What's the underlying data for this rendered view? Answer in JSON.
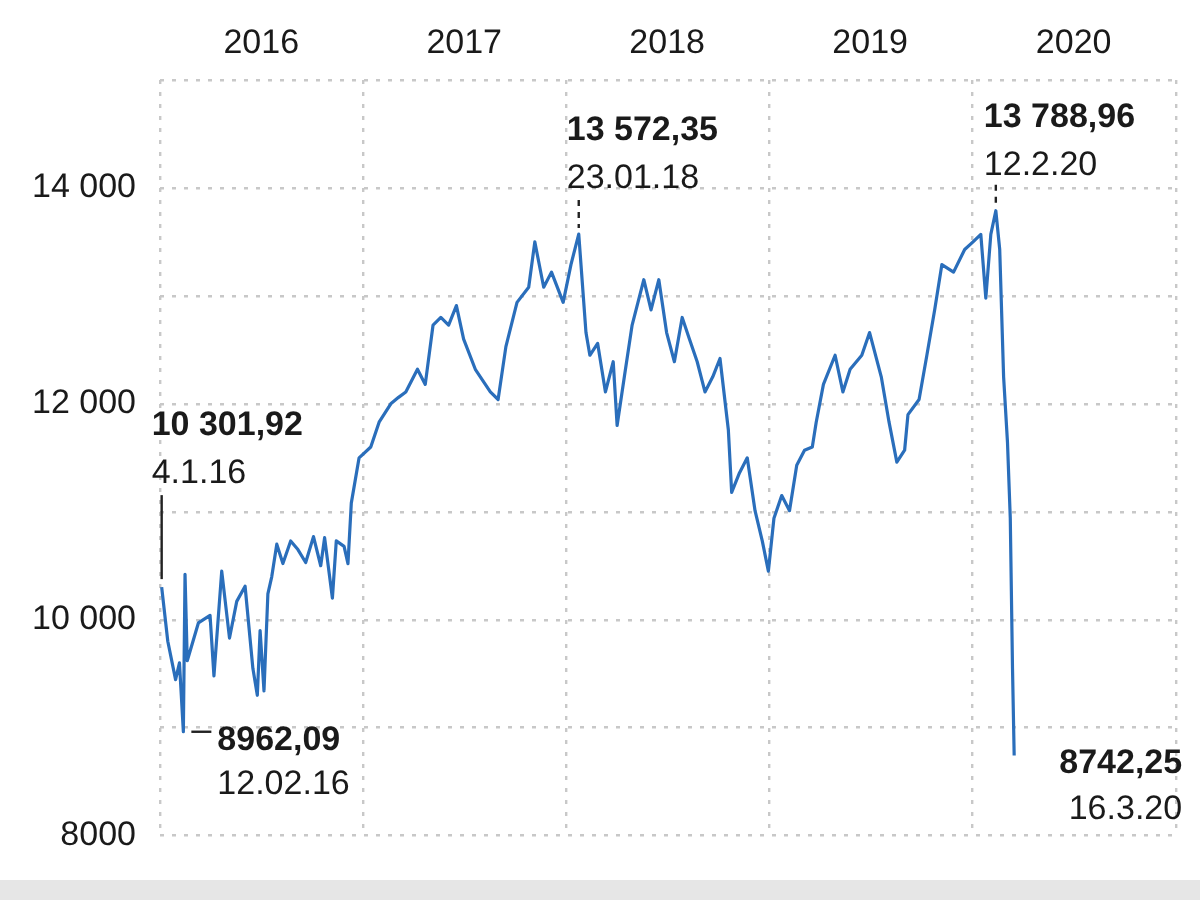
{
  "chart_data": {
    "type": "line",
    "x": [
      "2016-01-04",
      "2016-01-15",
      "2016-01-29",
      "2016-02-05",
      "2016-02-12",
      "2016-02-15",
      "2016-02-19",
      "2016-03-10",
      "2016-03-31",
      "2016-04-07",
      "2016-04-21",
      "2016-05-05",
      "2016-05-18",
      "2016-06-02",
      "2016-06-16",
      "2016-06-24",
      "2016-06-29",
      "2016-07-06",
      "2016-07-13",
      "2016-07-20",
      "2016-07-29",
      "2016-08-09",
      "2016-08-23",
      "2016-09-05",
      "2016-09-19",
      "2016-10-03",
      "2016-10-16",
      "2016-10-23",
      "2016-11-06",
      "2016-11-13",
      "2016-11-27",
      "2016-12-04",
      "2016-12-10",
      "2016-12-24",
      "2017-01-14",
      "2017-01-29",
      "2017-02-19",
      "2017-03-05",
      "2017-03-18",
      "2017-04-08",
      "2017-04-22",
      "2017-05-06",
      "2017-05-20",
      "2017-06-03",
      "2017-06-17",
      "2017-06-30",
      "2017-07-21",
      "2017-08-17",
      "2017-08-31",
      "2017-09-14",
      "2017-10-04",
      "2017-10-25",
      "2017-11-05",
      "2017-11-21",
      "2017-12-05",
      "2017-12-26",
      "2018-01-09",
      "2018-01-23",
      "2018-02-05",
      "2018-02-12",
      "2018-02-26",
      "2018-03-12",
      "2018-03-26",
      "2018-04-02",
      "2018-04-15",
      "2018-04-29",
      "2018-05-20",
      "2018-06-02",
      "2018-06-16",
      "2018-06-30",
      "2018-07-14",
      "2018-07-28",
      "2018-08-10",
      "2018-08-24",
      "2018-09-07",
      "2018-09-21",
      "2018-10-04",
      "2018-10-19",
      "2018-10-25",
      "2018-11-08",
      "2018-11-22",
      "2018-12-06",
      "2018-12-19",
      "2018-12-30",
      "2019-01-09",
      "2019-01-23",
      "2019-02-06",
      "2019-02-19",
      "2019-03-05",
      "2019-03-19",
      "2019-03-26",
      "2019-04-08",
      "2019-04-29",
      "2019-05-13",
      "2019-05-26",
      "2019-06-16",
      "2019-06-30",
      "2019-07-21",
      "2019-08-04",
      "2019-08-18",
      "2019-09-01",
      "2019-09-07",
      "2019-09-27",
      "2019-10-11",
      "2019-10-25",
      "2019-11-07",
      "2019-11-28",
      "2019-12-18",
      "2020-01-02",
      "2020-01-16",
      "2020-01-25",
      "2020-02-03",
      "2020-02-12",
      "2020-02-19",
      "2020-02-26",
      "2020-03-04",
      "2020-03-09",
      "2020-03-13",
      "2020-03-16"
    ],
    "series": [
      {
        "color": "#2a6ebb",
        "values": [
          10301.92,
          9800,
          9445,
          9600,
          8962.09,
          10420,
          9620,
          9970,
          10040,
          9480,
          10450,
          9830,
          10170,
          10310,
          9550,
          9300,
          9900,
          9340,
          10240,
          10400,
          10700,
          10520,
          10730,
          10650,
          10530,
          10770,
          10500,
          10760,
          10200,
          10730,
          10680,
          10520,
          11080,
          11500,
          11600,
          11830,
          12000,
          12060,
          12110,
          12320,
          12180,
          12730,
          12800,
          12730,
          12910,
          12600,
          12320,
          12110,
          12040,
          12530,
          12940,
          13080,
          13500,
          13080,
          13220,
          12940,
          13290,
          13572.35,
          12660,
          12450,
          12560,
          12110,
          12390,
          11800,
          12250,
          12730,
          13150,
          12870,
          13150,
          12660,
          12390,
          12800,
          12600,
          12390,
          12110,
          12250,
          12420,
          11760,
          11180,
          11360,
          11500,
          11010,
          10730,
          10450,
          10940,
          11150,
          11010,
          11430,
          11570,
          11600,
          11830,
          12180,
          12450,
          12110,
          12320,
          12450,
          12660,
          12250,
          11830,
          11460,
          11570,
          11900,
          12040,
          12450,
          12870,
          13290,
          13220,
          13430,
          13500,
          13570,
          12980,
          13570,
          13788.96,
          13430,
          12250,
          11640,
          10940,
          9550,
          8742.25
        ]
      }
    ],
    "xlim": [
      "2016-01-01",
      "2021-01-01"
    ],
    "xticks": [
      {
        "value": "2016-01-01",
        "label": null
      },
      {
        "value": "2016-07-01",
        "label": "2016"
      },
      {
        "value": "2017-01-01",
        "label": null
      },
      {
        "value": "2017-07-01",
        "label": "2017"
      },
      {
        "value": "2018-01-01",
        "label": null
      },
      {
        "value": "2018-07-01",
        "label": "2018"
      },
      {
        "value": "2019-01-01",
        "label": null
      },
      {
        "value": "2019-07-01",
        "label": "2019"
      },
      {
        "value": "2020-01-01",
        "label": null
      },
      {
        "value": "2020-07-01",
        "label": "2020"
      },
      {
        "value": "2021-01-01",
        "label": null
      }
    ],
    "ylim": [
      8000,
      15000
    ],
    "yticks": [
      8000,
      {
        "value": 9000,
        "label": null
      },
      {
        "value": 10000,
        "label": "10 000"
      },
      {
        "value": 11000,
        "label": null
      },
      {
        "value": 12000,
        "label": "12 000"
      },
      {
        "value": 13000,
        "label": null
      },
      {
        "value": 14000,
        "label": "14 000"
      },
      {
        "value": 15000,
        "label": null
      }
    ],
    "grid": true,
    "annotations": [
      {
        "text": "10 301,92\n4.1.16",
        "x": "2016-01-04",
        "y": 10301.92
      },
      {
        "text": "8962,09\n12.02.16",
        "x": "2016-02-12",
        "y": 8962.09
      },
      {
        "text": "13 572,35\n23.01.18",
        "x": "2018-01-23",
        "y": 13572.35
      },
      {
        "text": "13 788,96\n12.2.20",
        "x": "2020-02-12",
        "y": 13788.96
      },
      {
        "text": "8742,25\n16.3.20",
        "x": "2020-03-16",
        "y": 8742.25
      }
    ]
  }
}
